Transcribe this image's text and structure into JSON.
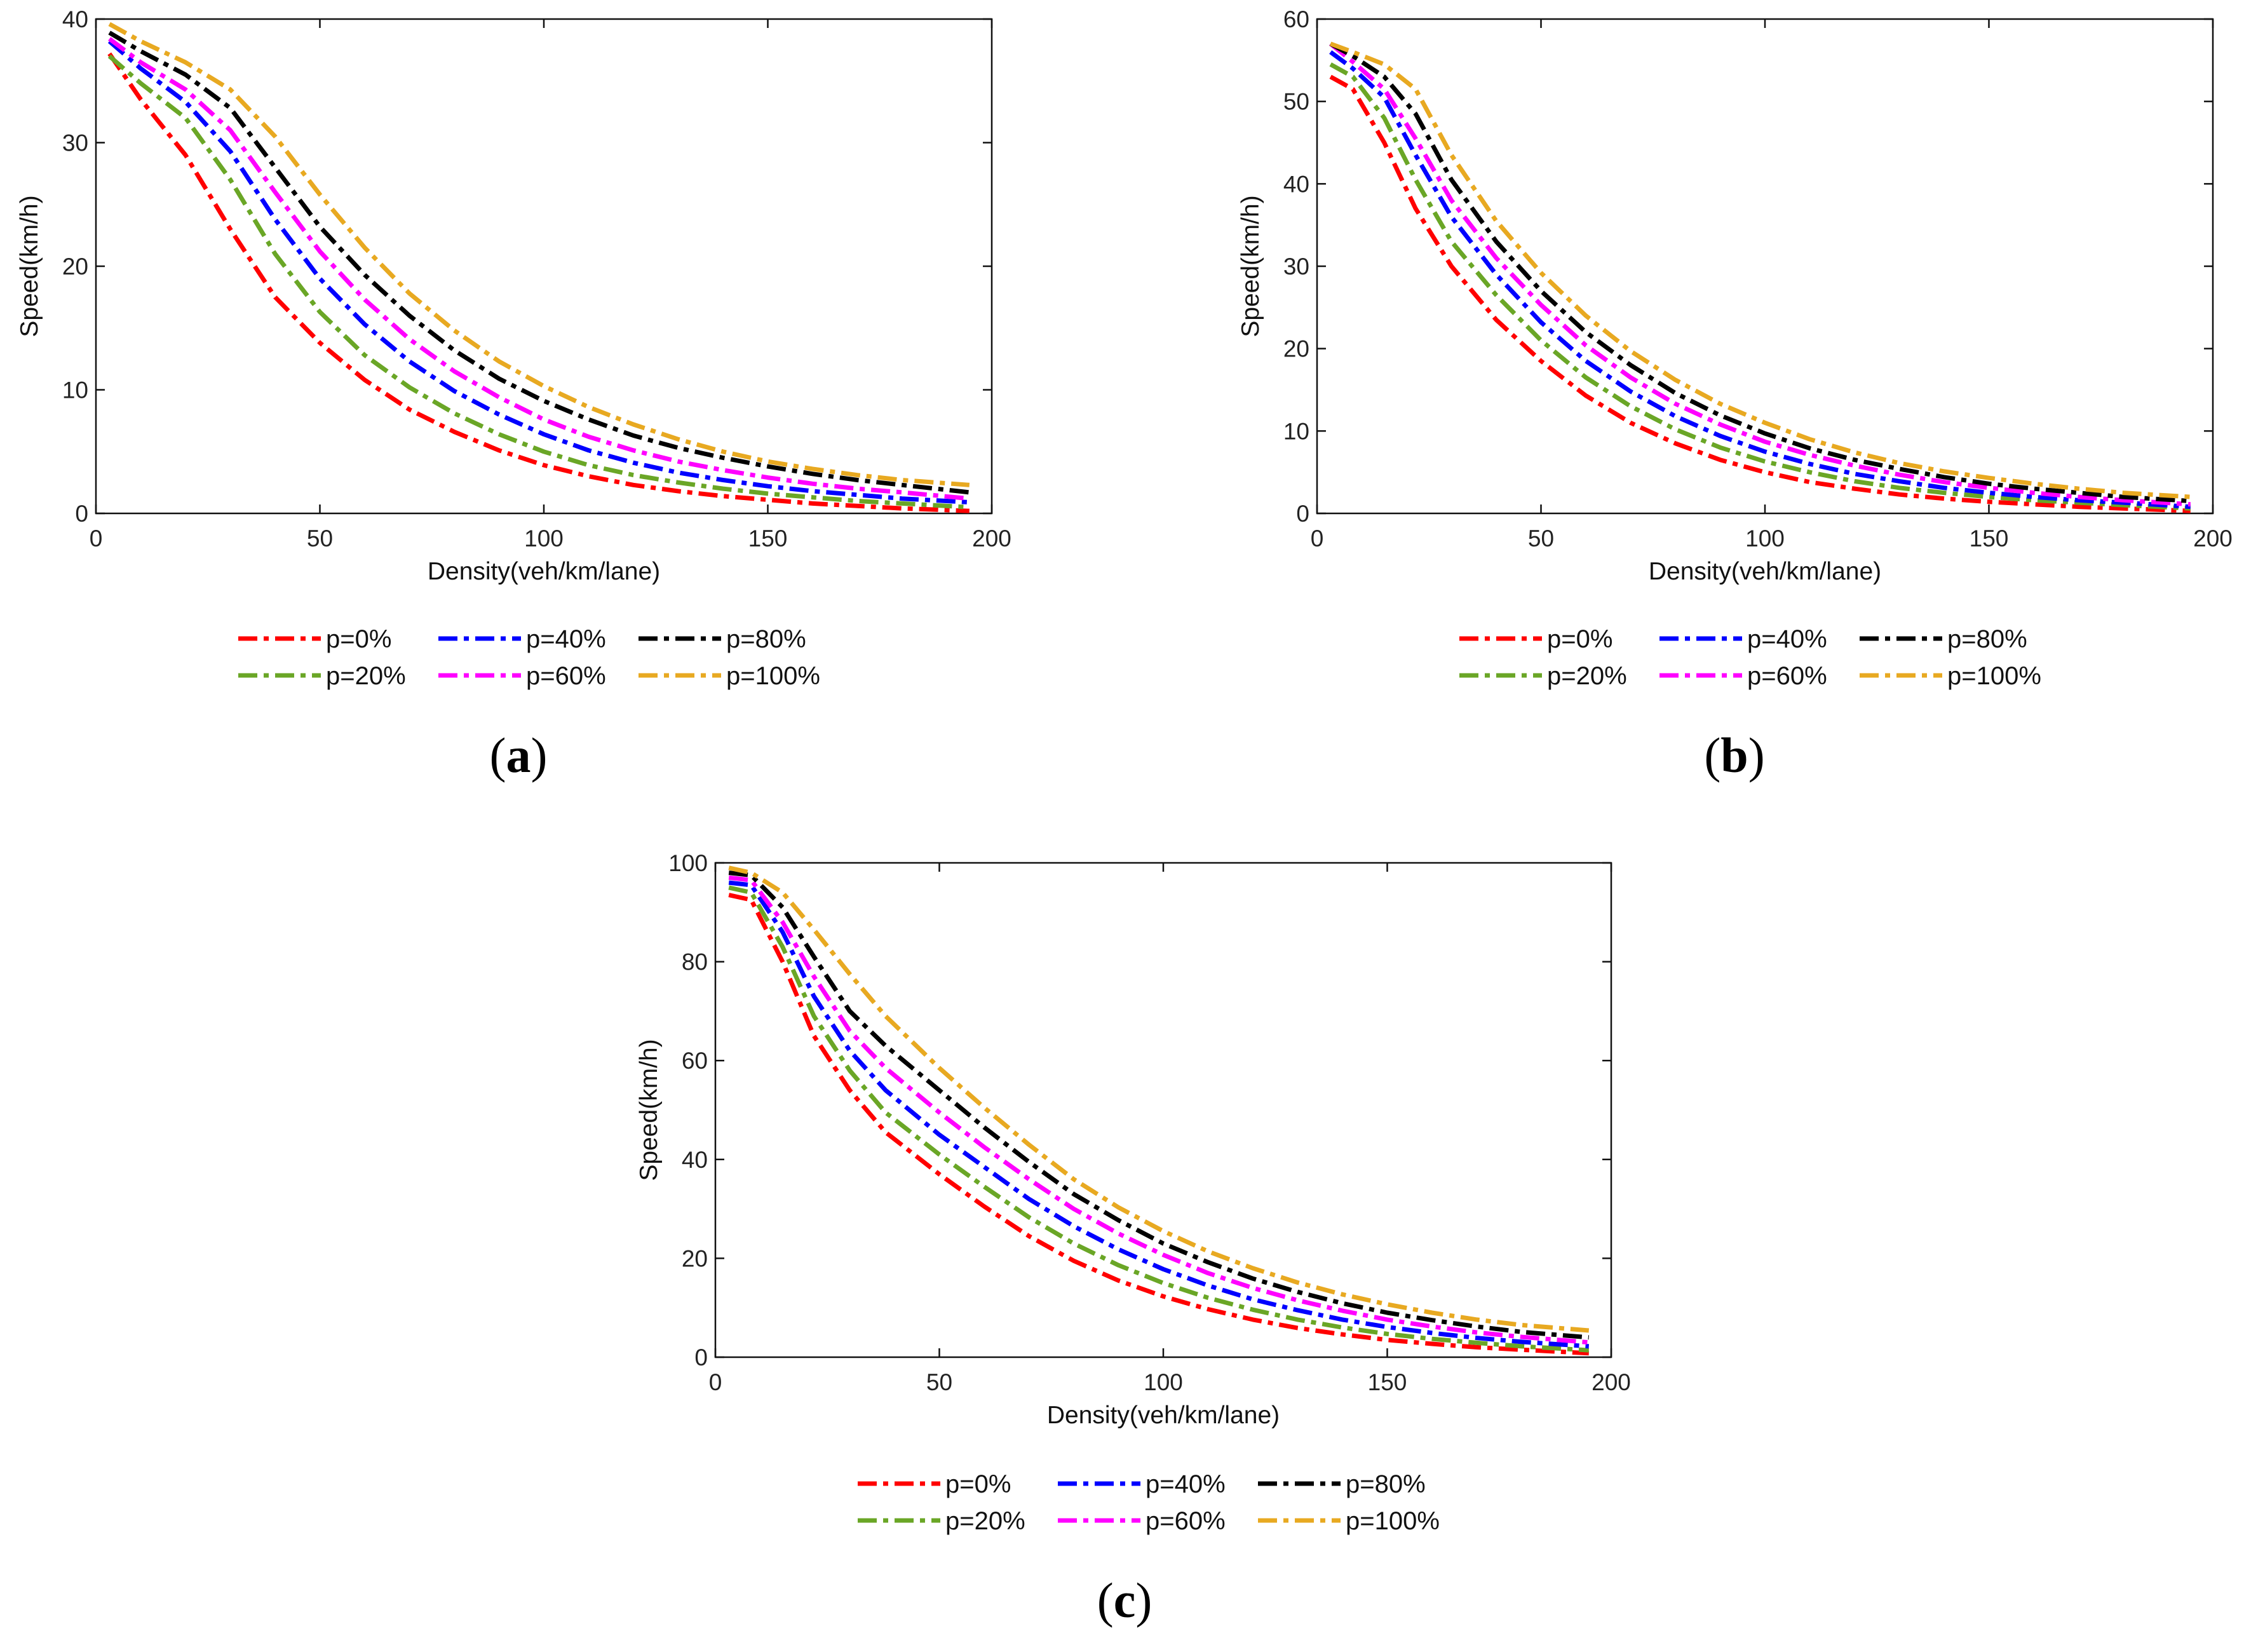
{
  "figure": {
    "series_styles": [
      {
        "name": "p=0%",
        "color": "#ff0000"
      },
      {
        "name": "p=20%",
        "color": "#6aa626"
      },
      {
        "name": "p=40%",
        "color": "#0000ff"
      },
      {
        "name": "p=60%",
        "color": "#ff00ff"
      },
      {
        "name": "p=80%",
        "color": "#000000"
      },
      {
        "name": "p=100%",
        "color": "#e8a921"
      }
    ]
  },
  "chart_data": [
    {
      "type": "line",
      "panel_label": "a",
      "title": "",
      "xlabel": "Density(veh/km/lane)",
      "ylabel": "Speed(km/h)",
      "xlim": [
        0,
        200
      ],
      "ylim": [
        0,
        40
      ],
      "xticks": [
        0,
        50,
        100,
        150,
        200
      ],
      "yticks": [
        0,
        10,
        20,
        30,
        40
      ],
      "x": [
        3,
        10,
        20,
        30,
        40,
        50,
        60,
        70,
        80,
        90,
        100,
        110,
        120,
        130,
        140,
        150,
        160,
        170,
        180,
        195
      ],
      "series": [
        {
          "name": "p=0%",
          "values": [
            37.2,
            33.5,
            29.0,
            23.0,
            17.5,
            13.8,
            10.8,
            8.4,
            6.6,
            5.1,
            3.9,
            3.0,
            2.3,
            1.8,
            1.4,
            1.1,
            0.8,
            0.6,
            0.4,
            0.2
          ]
        },
        {
          "name": "p=20%",
          "values": [
            37.0,
            34.8,
            32.0,
            27.0,
            21.0,
            16.3,
            12.8,
            10.2,
            8.1,
            6.4,
            5.0,
            3.9,
            3.1,
            2.5,
            2.0,
            1.6,
            1.3,
            1.0,
            0.8,
            0.5
          ]
        },
        {
          "name": "p=40%",
          "values": [
            38.2,
            36.0,
            33.3,
            29.3,
            23.8,
            19.0,
            15.3,
            12.3,
            9.9,
            8.0,
            6.4,
            5.1,
            4.1,
            3.3,
            2.7,
            2.2,
            1.8,
            1.5,
            1.2,
            0.9
          ]
        },
        {
          "name": "p=60%",
          "values": [
            38.4,
            36.5,
            34.3,
            31.0,
            26.0,
            21.2,
            17.3,
            14.1,
            11.5,
            9.4,
            7.6,
            6.2,
            5.1,
            4.2,
            3.5,
            2.9,
            2.4,
            2.0,
            1.7,
            1.2
          ]
        },
        {
          "name": "p=80%",
          "values": [
            38.9,
            37.4,
            35.5,
            32.8,
            28.0,
            23.2,
            19.3,
            16.0,
            13.2,
            10.9,
            9.1,
            7.6,
            6.3,
            5.3,
            4.5,
            3.8,
            3.2,
            2.7,
            2.3,
            1.7
          ]
        },
        {
          "name": "p=100%",
          "values": [
            39.6,
            38.2,
            36.5,
            34.3,
            30.5,
            25.8,
            21.5,
            17.8,
            14.8,
            12.3,
            10.3,
            8.6,
            7.2,
            6.0,
            5.0,
            4.2,
            3.6,
            3.1,
            2.7,
            2.3
          ]
        }
      ]
    },
    {
      "type": "line",
      "panel_label": "b",
      "title": "",
      "xlabel": "Density(veh/km/lane)",
      "ylabel": "Speed(km/h)",
      "xlim": [
        0,
        200
      ],
      "ylim": [
        0,
        60
      ],
      "xticks": [
        0,
        50,
        100,
        150,
        200
      ],
      "yticks": [
        0,
        10,
        20,
        30,
        40,
        50,
        60
      ],
      "x": [
        3,
        8,
        15,
        22,
        30,
        40,
        50,
        60,
        70,
        80,
        90,
        100,
        110,
        120,
        130,
        140,
        150,
        160,
        170,
        180,
        195
      ],
      "series": [
        {
          "name": "p=0%",
          "values": [
            53.0,
            51.5,
            45.0,
            37.0,
            30.0,
            23.5,
            18.5,
            14.3,
            11.0,
            8.5,
            6.5,
            5.0,
            3.8,
            3.0,
            2.3,
            1.8,
            1.4,
            1.1,
            0.8,
            0.6,
            0.3
          ]
        },
        {
          "name": "p=20%",
          "values": [
            54.5,
            53.0,
            48.0,
            40.5,
            33.0,
            26.5,
            21.0,
            16.5,
            13.0,
            10.2,
            8.0,
            6.3,
            5.0,
            3.9,
            3.1,
            2.5,
            2.0,
            1.6,
            1.3,
            1.0,
            0.6
          ]
        },
        {
          "name": "p=40%",
          "values": [
            56.0,
            54.0,
            50.5,
            43.5,
            36.0,
            29.0,
            23.2,
            18.5,
            14.8,
            11.8,
            9.4,
            7.5,
            6.0,
            4.8,
            3.9,
            3.1,
            2.5,
            2.0,
            1.6,
            1.3,
            0.8
          ]
        },
        {
          "name": "p=60%",
          "values": [
            57.0,
            54.8,
            51.5,
            45.5,
            38.0,
            31.0,
            25.3,
            20.4,
            16.5,
            13.3,
            10.8,
            8.7,
            7.1,
            5.8,
            4.7,
            3.8,
            3.1,
            2.5,
            2.0,
            1.6,
            1.1
          ]
        },
        {
          "name": "p=80%",
          "values": [
            57.0,
            55.5,
            53.0,
            48.5,
            40.5,
            33.0,
            27.0,
            22.0,
            18.0,
            14.6,
            11.9,
            9.7,
            7.9,
            6.5,
            5.4,
            4.4,
            3.6,
            3.0,
            2.5,
            2.0,
            1.5
          ]
        },
        {
          "name": "p=100%",
          "values": [
            57.0,
            56.0,
            54.5,
            51.5,
            43.5,
            35.5,
            29.2,
            24.0,
            19.7,
            16.2,
            13.3,
            11.0,
            9.0,
            7.4,
            6.1,
            5.1,
            4.3,
            3.6,
            3.0,
            2.5,
            2.0
          ]
        }
      ]
    },
    {
      "type": "line",
      "panel_label": "c",
      "title": "",
      "xlabel": "Density(veh/km/lane)",
      "ylabel": "Speed(km/h)",
      "xlim": [
        0,
        200
      ],
      "ylim": [
        0,
        100
      ],
      "xticks": [
        0,
        50,
        100,
        150,
        200
      ],
      "yticks": [
        0,
        20,
        40,
        60,
        80,
        100
      ],
      "x": [
        3,
        8,
        15,
        22,
        30,
        38,
        50,
        60,
        70,
        80,
        90,
        100,
        110,
        120,
        130,
        140,
        150,
        160,
        170,
        180,
        195
      ],
      "series": [
        {
          "name": "p=0%",
          "values": [
            93.5,
            92.5,
            80.0,
            65.0,
            54.0,
            45.5,
            37.0,
            30.5,
            24.5,
            19.5,
            15.5,
            12.3,
            9.7,
            7.6,
            5.9,
            4.6,
            3.5,
            2.7,
            2.0,
            1.5,
            0.8
          ]
        },
        {
          "name": "p=20%",
          "values": [
            95.0,
            94.0,
            83.0,
            69.0,
            58.0,
            49.5,
            41.0,
            34.5,
            28.3,
            23.0,
            18.6,
            15.0,
            12.0,
            9.6,
            7.6,
            6.0,
            4.7,
            3.7,
            2.9,
            2.2,
            1.4
          ]
        },
        {
          "name": "p=40%",
          "values": [
            96.0,
            95.5,
            86.0,
            73.0,
            62.0,
            54.0,
            45.0,
            38.5,
            32.0,
            26.5,
            21.8,
            17.8,
            14.5,
            11.7,
            9.5,
            7.6,
            6.1,
            4.9,
            3.9,
            3.1,
            2.2
          ]
        },
        {
          "name": "p=60%",
          "values": [
            97.0,
            96.5,
            88.0,
            77.0,
            66.0,
            58.5,
            49.5,
            42.5,
            36.0,
            30.0,
            25.0,
            20.7,
            17.0,
            14.0,
            11.5,
            9.4,
            7.6,
            6.2,
            5.0,
            4.1,
            3.0
          ]
        },
        {
          "name": "p=80%",
          "values": [
            98.0,
            97.5,
            91.0,
            81.0,
            70.0,
            63.0,
            54.0,
            46.5,
            39.5,
            33.0,
            27.7,
            23.0,
            19.2,
            15.9,
            13.2,
            10.9,
            9.0,
            7.5,
            6.2,
            5.1,
            4.0
          ]
        },
        {
          "name": "p=100%",
          "values": [
            99.0,
            98.0,
            94.0,
            86.5,
            77.5,
            69.0,
            58.5,
            50.5,
            43.0,
            36.0,
            30.3,
            25.5,
            21.4,
            18.0,
            15.1,
            12.7,
            10.7,
            9.0,
            7.6,
            6.5,
            5.4
          ]
        }
      ]
    }
  ]
}
